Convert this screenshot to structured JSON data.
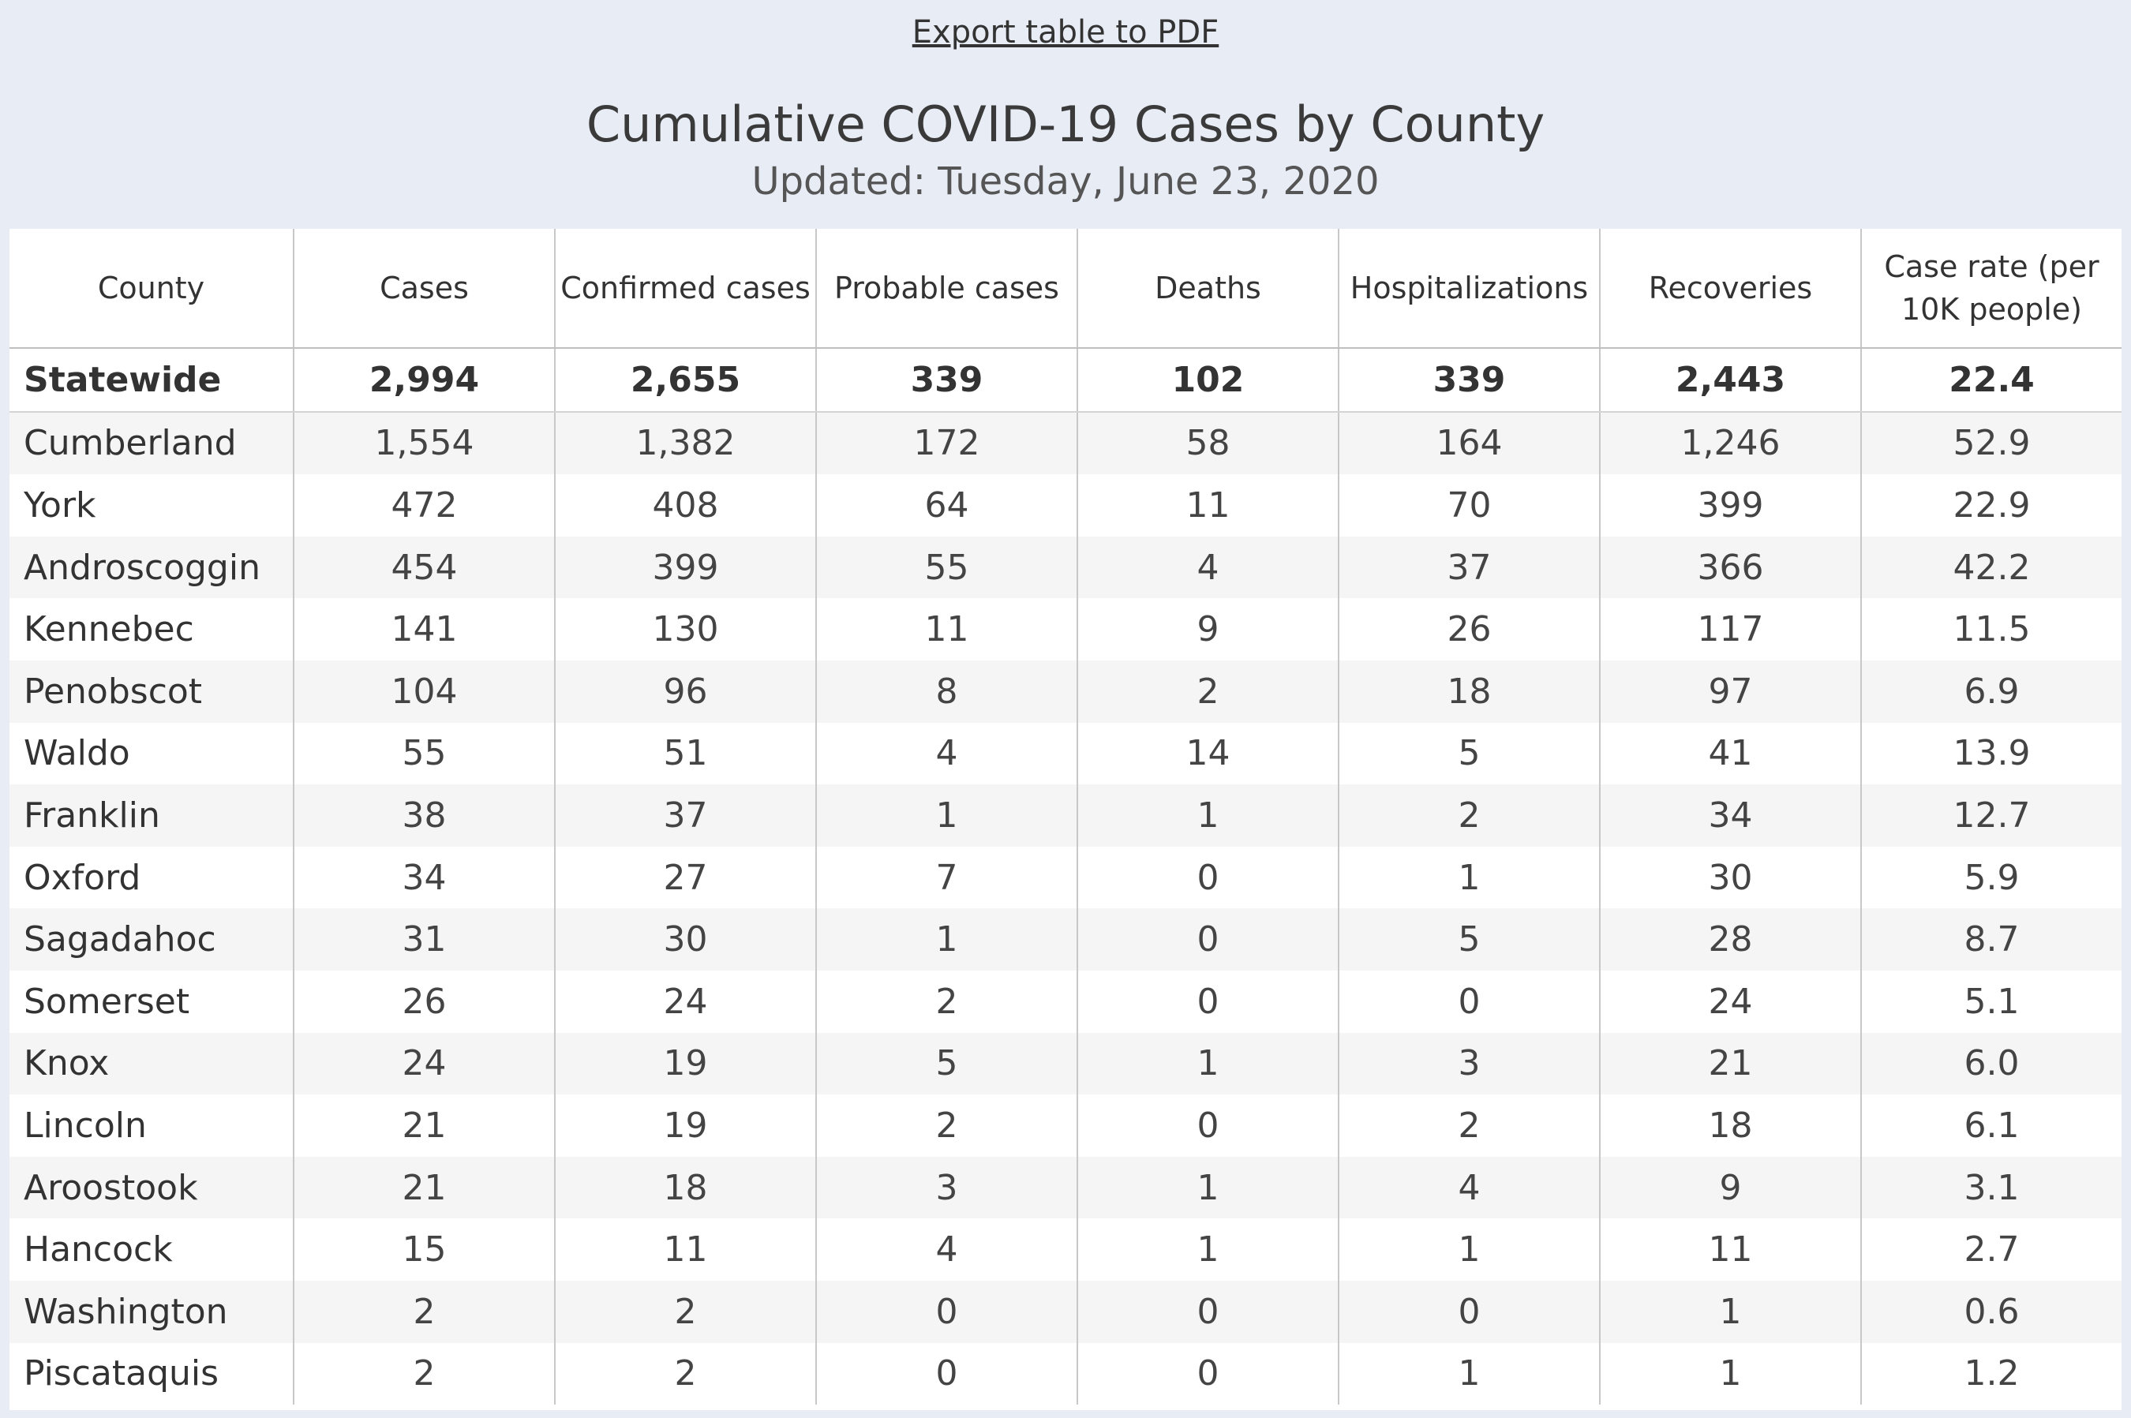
{
  "export": {
    "label": "Export table to PDF"
  },
  "header": {
    "title": "Cumulative COVID-19 Cases by County",
    "subtitle": "Updated: Tuesday, June 23, 2020"
  },
  "table": {
    "columns": [
      "County",
      "Cases",
      "Confirmed cases",
      "Probable cases",
      "Deaths",
      "Hospitalizations",
      "Recoveries",
      "Case rate (per 10K people)"
    ],
    "statewide": [
      "Statewide",
      "2,994",
      "2,655",
      "339",
      "102",
      "339",
      "2,443",
      "22.4"
    ],
    "rows": [
      [
        "Cumberland",
        "1,554",
        "1,382",
        "172",
        "58",
        "164",
        "1,246",
        "52.9"
      ],
      [
        "York",
        "472",
        "408",
        "64",
        "11",
        "70",
        "399",
        "22.9"
      ],
      [
        "Androscoggin",
        "454",
        "399",
        "55",
        "4",
        "37",
        "366",
        "42.2"
      ],
      [
        "Kennebec",
        "141",
        "130",
        "11",
        "9",
        "26",
        "117",
        "11.5"
      ],
      [
        "Penobscot",
        "104",
        "96",
        "8",
        "2",
        "18",
        "97",
        "6.9"
      ],
      [
        "Waldo",
        "55",
        "51",
        "4",
        "14",
        "5",
        "41",
        "13.9"
      ],
      [
        "Franklin",
        "38",
        "37",
        "1",
        "1",
        "2",
        "34",
        "12.7"
      ],
      [
        "Oxford",
        "34",
        "27",
        "7",
        "0",
        "1",
        "30",
        "5.9"
      ],
      [
        "Sagadahoc",
        "31",
        "30",
        "1",
        "0",
        "5",
        "28",
        "8.7"
      ],
      [
        "Somerset",
        "26",
        "24",
        "2",
        "0",
        "0",
        "24",
        "5.1"
      ],
      [
        "Knox",
        "24",
        "19",
        "5",
        "1",
        "3",
        "21",
        "6.0"
      ],
      [
        "Lincoln",
        "21",
        "19",
        "2",
        "0",
        "2",
        "18",
        "6.1"
      ],
      [
        "Aroostook",
        "21",
        "18",
        "3",
        "1",
        "4",
        "9",
        "3.1"
      ],
      [
        "Hancock",
        "15",
        "11",
        "4",
        "1",
        "1",
        "11",
        "2.7"
      ],
      [
        "Washington",
        "2",
        "2",
        "0",
        "0",
        "0",
        "1",
        "0.6"
      ],
      [
        "Piscataquis",
        "2",
        "2",
        "0",
        "0",
        "1",
        "1",
        "1.2"
      ]
    ]
  }
}
